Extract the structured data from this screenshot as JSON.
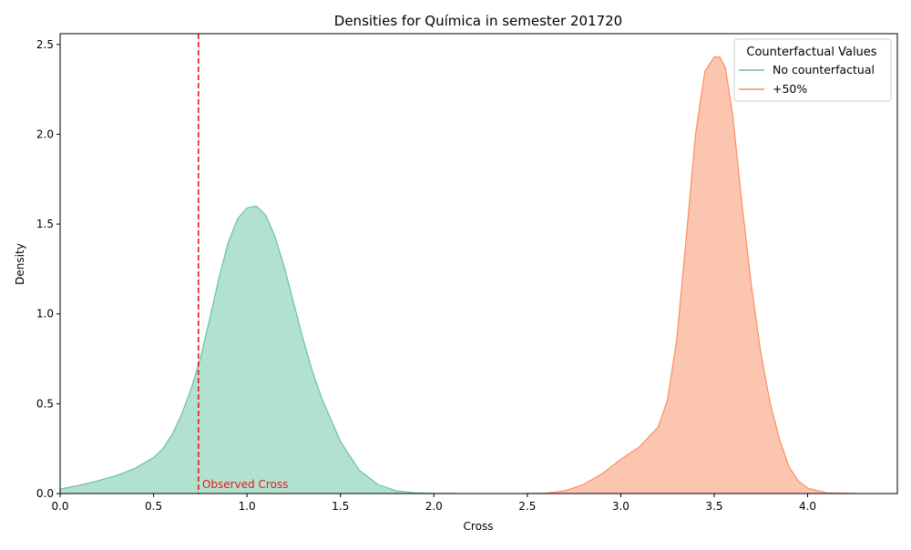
{
  "chart_data": {
    "type": "area",
    "title": "Densities for Química in semester 201720",
    "xlabel": "Cross",
    "ylabel": "Density",
    "xlim": [
      0.0,
      4.48
    ],
    "ylim": [
      0.0,
      2.56
    ],
    "xticks": [
      0.0,
      0.5,
      1.0,
      1.5,
      2.0,
      2.5,
      3.0,
      3.5,
      4.0
    ],
    "xtick_labels": [
      "0.0",
      "0.5",
      "1.0",
      "1.5",
      "2.0",
      "2.5",
      "3.0",
      "3.5",
      "4.0"
    ],
    "yticks": [
      0.0,
      0.5,
      1.0,
      1.5,
      2.0,
      2.5
    ],
    "ytick_labels": [
      "0.0",
      "0.5",
      "1.0",
      "1.5",
      "2.0",
      "2.5"
    ],
    "grid": false,
    "legend": {
      "title": "Counterfactual Values",
      "placement": "top-right",
      "entries": [
        "No counterfactual",
        "+50%"
      ]
    },
    "series": [
      {
        "name": "No counterfactual",
        "color": "#66c2a5",
        "fill": "#b2e2cf",
        "x": [
          0.0,
          0.1,
          0.2,
          0.3,
          0.4,
          0.5,
          0.55,
          0.6,
          0.65,
          0.7,
          0.75,
          0.8,
          0.85,
          0.9,
          0.95,
          1.0,
          1.05,
          1.1,
          1.15,
          1.2,
          1.25,
          1.3,
          1.35,
          1.4,
          1.5,
          1.6,
          1.7,
          1.8,
          1.9,
          2.0,
          2.12
        ],
        "y": [
          0.025,
          0.045,
          0.07,
          0.1,
          0.14,
          0.2,
          0.25,
          0.33,
          0.44,
          0.58,
          0.75,
          0.97,
          1.2,
          1.4,
          1.53,
          1.59,
          1.6,
          1.55,
          1.43,
          1.26,
          1.06,
          0.86,
          0.68,
          0.53,
          0.29,
          0.13,
          0.05,
          0.015,
          0.004,
          0.001,
          0.0
        ]
      },
      {
        "name": "+50%",
        "color": "#fc8d62",
        "fill": "#fcc5b0",
        "x": [
          2.48,
          2.6,
          2.7,
          2.8,
          2.9,
          3.0,
          3.1,
          3.2,
          3.25,
          3.3,
          3.35,
          3.4,
          3.45,
          3.5,
          3.53,
          3.56,
          3.6,
          3.65,
          3.7,
          3.75,
          3.8,
          3.85,
          3.9,
          3.95,
          4.0,
          4.1,
          4.26
        ],
        "y": [
          0.0,
          0.002,
          0.015,
          0.05,
          0.11,
          0.19,
          0.26,
          0.37,
          0.52,
          0.86,
          1.42,
          2.0,
          2.35,
          2.43,
          2.43,
          2.37,
          2.1,
          1.6,
          1.15,
          0.78,
          0.5,
          0.3,
          0.15,
          0.07,
          0.03,
          0.004,
          0.0
        ]
      }
    ],
    "annotations": [
      {
        "type": "vline",
        "x": 0.74,
        "color": "#e41a1c",
        "style": "dashed"
      },
      {
        "type": "text",
        "text": "Observed Cross",
        "x": 0.76,
        "y": 0.02,
        "color": "#e41a1c"
      }
    ]
  }
}
